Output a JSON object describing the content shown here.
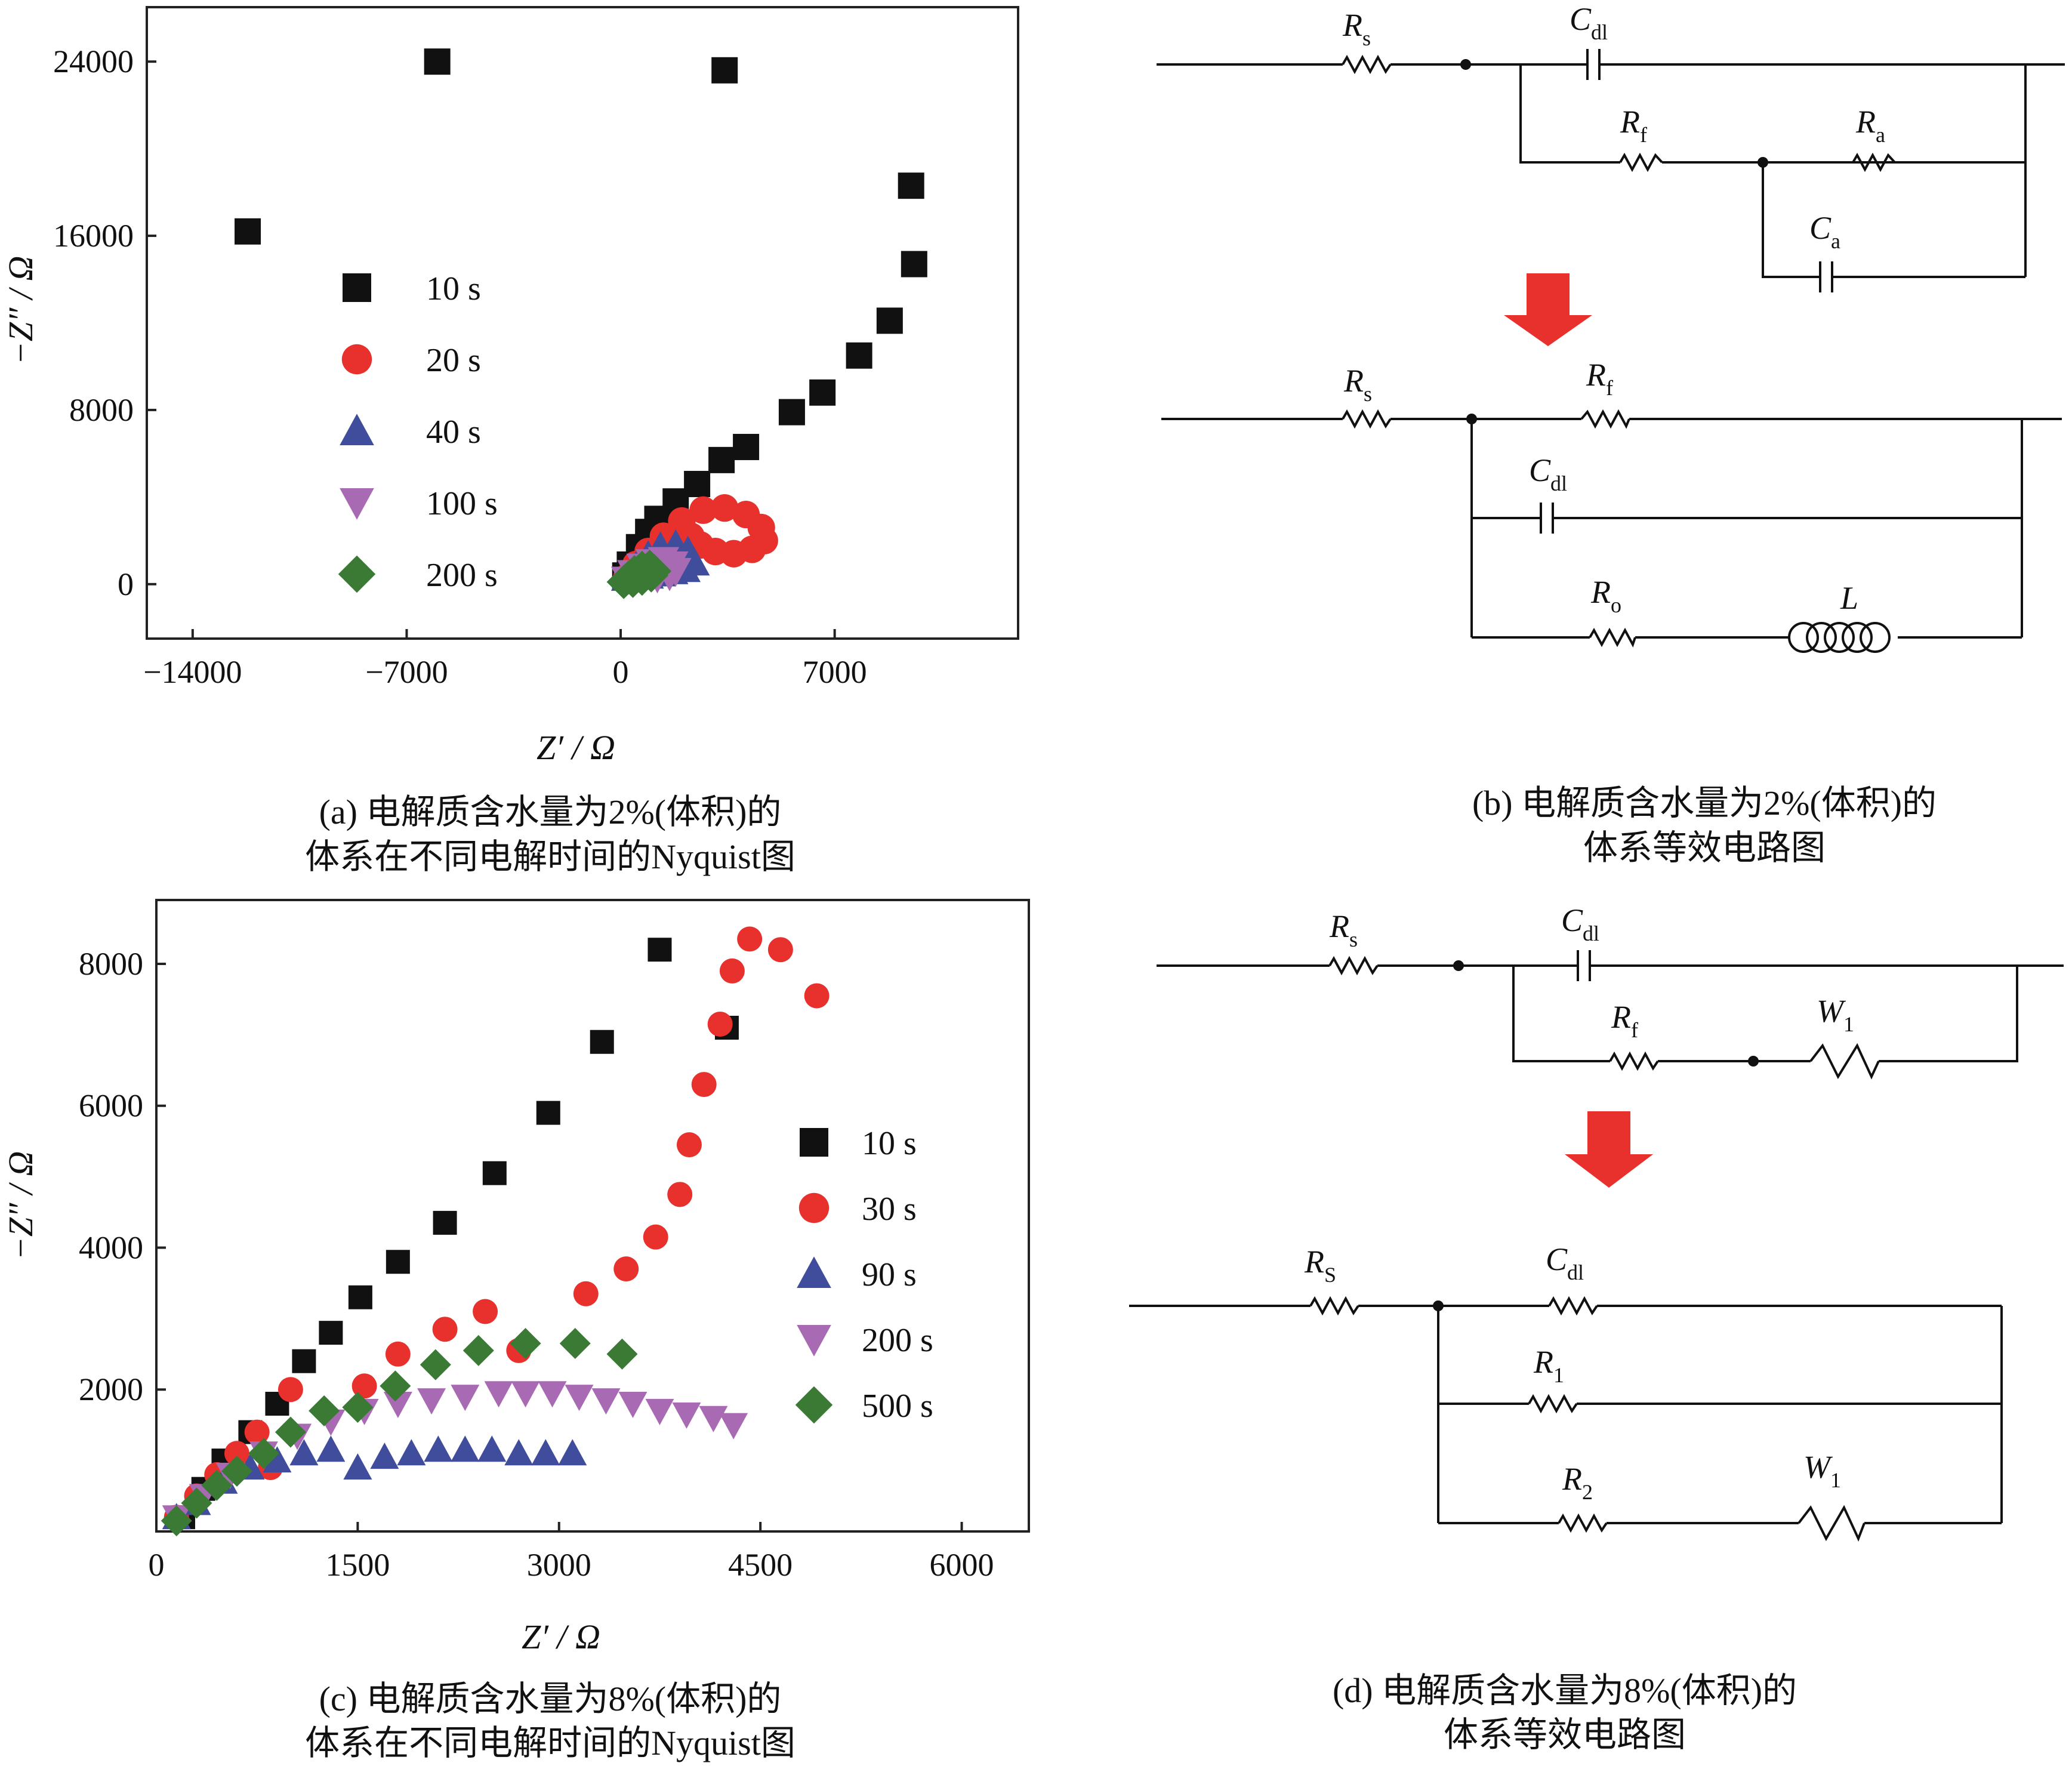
{
  "chart_data": [
    {
      "type": "scatter",
      "xlabel": "Z′ / Ω",
      "ylabel": "−Z″ / Ω",
      "xlim": [
        -15500,
        13000
      ],
      "ylim": [
        -2500,
        26500
      ],
      "xticks": [
        -14000,
        -7000,
        0,
        7000
      ],
      "yticks": [
        0,
        8000,
        16000,
        24000
      ],
      "xtick_labels": [
        "−14000",
        "−7000",
        "0",
        "7000"
      ],
      "ytick_labels": [
        "0",
        "8000",
        "16000",
        "24000"
      ],
      "legend_position": "left",
      "caption": [
        "(a) 电解质含水量为2%(体积)的",
        "体系在不同电解时间的Nyquist图"
      ],
      "series": [
        {
          "name": "10 s",
          "marker": "square",
          "color": "#111111",
          "points": [
            [
              -12200,
              16200
            ],
            [
              -6000,
              24000
            ],
            [
              3400,
              23600
            ],
            [
              9500,
              18300
            ],
            [
              9600,
              14700
            ],
            [
              8800,
              12100
            ],
            [
              7800,
              10500
            ],
            [
              6600,
              8800
            ],
            [
              5600,
              7900
            ],
            [
              4100,
              6300
            ],
            [
              3300,
              5700
            ],
            [
              2500,
              4600
            ],
            [
              1800,
              3800
            ],
            [
              1200,
              3000
            ],
            [
              900,
              2400
            ],
            [
              600,
              1700
            ],
            [
              300,
              900
            ],
            [
              150,
              400
            ]
          ]
        },
        {
          "name": "20 s",
          "marker": "circle",
          "color": "#e8312d",
          "points": [
            [
              200,
              300
            ],
            [
              500,
              900
            ],
            [
              900,
              1500
            ],
            [
              1400,
              2200
            ],
            [
              2000,
              2900
            ],
            [
              2700,
              3400
            ],
            [
              3400,
              3500
            ],
            [
              4100,
              3200
            ],
            [
              4600,
              2600
            ],
            [
              4700,
              2000
            ],
            [
              4300,
              1600
            ],
            [
              3700,
              1400
            ],
            [
              3100,
              1500
            ],
            [
              2600,
              1800
            ],
            [
              2300,
              2200
            ],
            [
              2000,
              1800
            ],
            [
              1600,
              1300
            ],
            [
              1100,
              800
            ]
          ]
        },
        {
          "name": "40 s",
          "marker": "triangle-up",
          "color": "#3f4d9c",
          "points": [
            [
              200,
              300
            ],
            [
              500,
              800
            ],
            [
              900,
              1300
            ],
            [
              1300,
              1700
            ],
            [
              1800,
              1800
            ],
            [
              2200,
              1500
            ],
            [
              2400,
              1000
            ],
            [
              2100,
              700
            ],
            [
              1700,
              600
            ],
            [
              1300,
              500
            ],
            [
              900,
              400
            ]
          ]
        },
        {
          "name": "100 s",
          "marker": "triangle-down",
          "color": "#a86bb3",
          "points": [
            [
              200,
              200
            ],
            [
              400,
              500
            ],
            [
              700,
              800
            ],
            [
              1000,
              1000
            ],
            [
              1400,
              1100
            ],
            [
              1700,
              900
            ],
            [
              1800,
              600
            ],
            [
              1600,
              400
            ],
            [
              1200,
              300
            ]
          ]
        },
        {
          "name": "200 s",
          "marker": "diamond",
          "color": "#3a7a34",
          "points": [
            [
              100,
              100
            ],
            [
              250,
              300
            ],
            [
              450,
              550
            ],
            [
              700,
              750
            ],
            [
              950,
              800
            ],
            [
              1100,
              600
            ],
            [
              1000,
              400
            ],
            [
              700,
              250
            ],
            [
              400,
              150
            ]
          ]
        }
      ]
    },
    {
      "type": "scatter",
      "xlabel": "Z′ / Ω",
      "ylabel": "−Z″ / Ω",
      "xlim": [
        0,
        6500
      ],
      "ylim": [
        0,
        8900
      ],
      "xticks": [
        0,
        1500,
        3000,
        4500,
        6000
      ],
      "yticks": [
        2000,
        4000,
        6000,
        8000
      ],
      "xtick_labels": [
        "0",
        "1500",
        "3000",
        "4500",
        "6000"
      ],
      "ytick_labels": [
        "2000",
        "4000",
        "6000",
        "8000"
      ],
      "legend_position": "right",
      "caption": [
        "(c) 电解质含水量为8%(体积)的",
        "体系在不同电解时间的Nyquist图"
      ],
      "series": [
        {
          "name": "10 s",
          "marker": "square",
          "color": "#111111",
          "points": [
            [
              200,
              200
            ],
            [
              350,
              600
            ],
            [
              500,
              1000
            ],
            [
              700,
              1400
            ],
            [
              900,
              1800
            ],
            [
              1100,
              2400
            ],
            [
              1300,
              2800
            ],
            [
              1520,
              3300
            ],
            [
              1800,
              3800
            ],
            [
              2150,
              4350
            ],
            [
              2520,
              5050
            ],
            [
              2920,
              5900
            ],
            [
              3320,
              6900
            ],
            [
              3750,
              8200
            ],
            [
              4250,
              7100
            ]
          ]
        },
        {
          "name": "30 s",
          "marker": "circle",
          "color": "#e8312d",
          "points": [
            [
              150,
              200
            ],
            [
              300,
              500
            ],
            [
              450,
              800
            ],
            [
              600,
              1100
            ],
            [
              750,
              1400
            ],
            [
              850,
              900
            ],
            [
              1000,
              2000
            ],
            [
              1550,
              2050
            ],
            [
              1800,
              2500
            ],
            [
              2150,
              2850
            ],
            [
              2450,
              3100
            ],
            [
              2700,
              2550
            ],
            [
              3200,
              3350
            ],
            [
              3500,
              3700
            ],
            [
              3720,
              4150
            ],
            [
              3900,
              4750
            ],
            [
              3970,
              5450
            ],
            [
              4080,
              6300
            ],
            [
              4200,
              7150
            ],
            [
              4290,
              7900
            ],
            [
              4420,
              8350
            ],
            [
              4650,
              8200
            ],
            [
              4920,
              7550
            ]
          ]
        },
        {
          "name": "90 s",
          "marker": "triangle-up",
          "color": "#3f4d9c",
          "points": [
            [
              150,
              200
            ],
            [
              300,
              400
            ],
            [
              500,
              700
            ],
            [
              700,
              900
            ],
            [
              900,
              1000
            ],
            [
              1100,
              1100
            ],
            [
              1300,
              1150
            ],
            [
              1500,
              900
            ],
            [
              1700,
              1050
            ],
            [
              1900,
              1100
            ],
            [
              2100,
              1150
            ],
            [
              2300,
              1150
            ],
            [
              2500,
              1150
            ],
            [
              2700,
              1100
            ],
            [
              2900,
              1100
            ],
            [
              3100,
              1100
            ]
          ]
        },
        {
          "name": "200 s",
          "marker": "triangle-down",
          "color": "#a86bb3",
          "points": [
            [
              150,
              200
            ],
            [
              350,
              500
            ],
            [
              550,
              800
            ],
            [
              800,
              1100
            ],
            [
              1050,
              1350
            ],
            [
              1300,
              1550
            ],
            [
              1550,
              1700
            ],
            [
              1800,
              1800
            ],
            [
              2050,
              1850
            ],
            [
              2300,
              1900
            ],
            [
              2550,
              1950
            ],
            [
              2750,
              1950
            ],
            [
              2950,
              1950
            ],
            [
              3150,
              1900
            ],
            [
              3350,
              1850
            ],
            [
              3550,
              1800
            ],
            [
              3750,
              1700
            ],
            [
              3950,
              1650
            ],
            [
              4150,
              1600
            ],
            [
              4300,
              1500
            ]
          ]
        },
        {
          "name": "500 s",
          "marker": "diamond",
          "color": "#3a7a34",
          "points": [
            [
              150,
              150
            ],
            [
              300,
              400
            ],
            [
              450,
              650
            ],
            [
              600,
              850
            ],
            [
              800,
              1100
            ],
            [
              1000,
              1400
            ],
            [
              1250,
              1700
            ],
            [
              1500,
              1750
            ],
            [
              1780,
              2050
            ],
            [
              2080,
              2350
            ],
            [
              2400,
              2550
            ],
            [
              2750,
              2650
            ],
            [
              3120,
              2650
            ],
            [
              3470,
              2500
            ]
          ]
        }
      ]
    }
  ],
  "circuits": {
    "b": {
      "top": {
        "rs": "R",
        "rs_sub": "s",
        "cdl": "C",
        "cdl_sub": "dl",
        "rf": "R",
        "rf_sub": "f",
        "ra": "R",
        "ra_sub": "a",
        "ca": "C",
        "ca_sub": "a"
      },
      "bottom": {
        "rs": "R",
        "rs_sub": "s",
        "rf": "R",
        "rf_sub": "f",
        "cdl": "C",
        "cdl_sub": "dl",
        "ro": "R",
        "ro_sub": "o",
        "l": "L"
      },
      "caption": [
        "(b) 电解质含水量为2%(体积)的",
        "体系等效电路图"
      ]
    },
    "d": {
      "top": {
        "rs": "R",
        "rs_sub": "s",
        "cdl": "C",
        "cdl_sub": "dl",
        "rf": "R",
        "rf_sub": "f",
        "w1": "W",
        "w1_sub": "1"
      },
      "bottom": {
        "rs": "R",
        "rs_sub": "S",
        "cdl": "C",
        "cdl_sub": "dl",
        "r1": "R",
        "r1_sub": "1",
        "r2": "R",
        "r2_sub": "2",
        "w1": "W",
        "w1_sub": "1"
      },
      "caption": [
        "(d) 电解质含水量为8%(体积)的",
        "体系等效电路图"
      ]
    }
  },
  "colors": {
    "arrow": "#e8312d",
    "black": "#111111"
  }
}
